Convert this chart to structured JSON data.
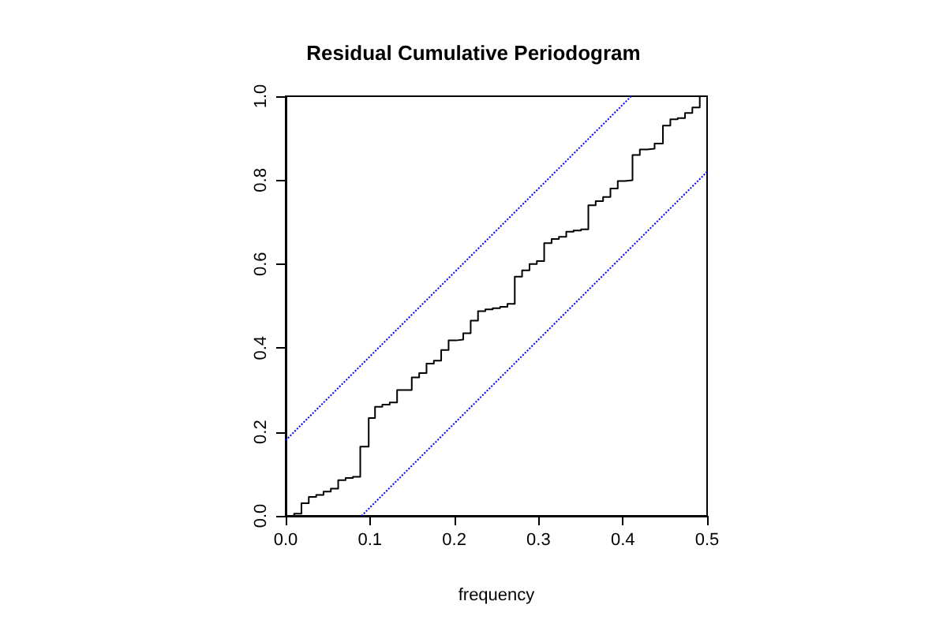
{
  "chart_data": {
    "type": "step",
    "title": "Residual Cumulative Periodogram",
    "xlabel": "frequency",
    "xlim": [
      0,
      0.5
    ],
    "ylim": [
      0,
      1
    ],
    "xticks": [
      {
        "value": 0,
        "label": "0.0"
      },
      0.1,
      0.2,
      0.3,
      0.4,
      0.5
    ],
    "yticks": [
      {
        "value": 0,
        "label": "0.0"
      },
      0.2,
      0.4,
      0.6,
      0.8,
      {
        "value": 1,
        "label": "1.0"
      }
    ],
    "grid": false,
    "marker": "none",
    "series": [
      {
        "color": "#000000",
        "line_style": "solid",
        "x": [
          0,
          0.01,
          0.0187,
          0.0274,
          0.0362,
          0.0449,
          0.0536,
          0.0623,
          0.0711,
          0.0798,
          0.0885,
          0.0985,
          0.106,
          0.1147,
          0.1234,
          0.1322,
          0.1496,
          0.1584,
          0.1671,
          0.1758,
          0.1845,
          0.1933,
          0.202,
          0.2107,
          0.2195,
          0.2282,
          0.2369,
          0.2456,
          0.2544,
          0.2631,
          0.2718,
          0.2805,
          0.2893,
          0.298,
          0.3067,
          0.3155,
          0.3242,
          0.3329,
          0.3416,
          0.3504,
          0.3591,
          0.3678,
          0.3766,
          0.3853,
          0.394,
          0.4027,
          0.4115,
          0.4202,
          0.4289,
          0.4377,
          0.4476,
          0.4564,
          0.4651,
          0.4738,
          0.4825,
          0.4913
        ],
        "values": [
          0,
          0.005,
          0.03,
          0.045,
          0.05,
          0.058,
          0.065,
          0.085,
          0.09,
          0.093,
          0.165,
          0.233,
          0.26,
          0.265,
          0.27,
          0.3,
          0.33,
          0.34,
          0.363,
          0.37,
          0.395,
          0.418,
          0.42,
          0.435,
          0.465,
          0.488,
          0.492,
          0.495,
          0.498,
          0.505,
          0.57,
          0.585,
          0.6,
          0.607,
          0.65,
          0.66,
          0.665,
          0.677,
          0.68,
          0.683,
          0.74,
          0.75,
          0.76,
          0.78,
          0.798,
          0.8,
          0.86,
          0.873,
          0.875,
          0.887,
          0.93,
          0.945,
          0.948,
          0.96,
          0.973,
          1
        ]
      },
      {
        "type": "line",
        "color": "#0000ff",
        "line_style": "dotted",
        "x": [
          0,
          0.41
        ],
        "values": [
          0.18,
          1
        ]
      },
      {
        "type": "line",
        "color": "#0000ff",
        "line_style": "dotted",
        "x": [
          0.09,
          0.5
        ],
        "values": [
          0,
          0.82
        ]
      }
    ]
  }
}
